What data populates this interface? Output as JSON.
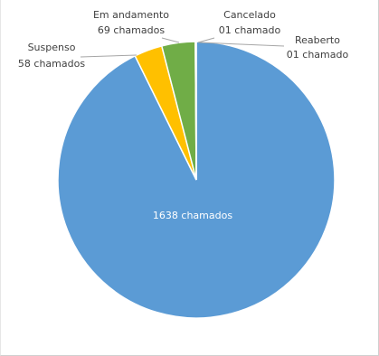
{
  "chart_data": {
    "type": "pie",
    "slices": [
      {
        "label": "",
        "value": 1638,
        "value_label": "1638 chamados",
        "color": "#5B9BD5"
      },
      {
        "label": "Suspenso",
        "value": 58,
        "value_label": "58 chamados",
        "color": "#FFC000"
      },
      {
        "label": "Em andamento",
        "value": 69,
        "value_label": "69 chamados",
        "color": "#70AD47"
      },
      {
        "label": "Cancelado",
        "value": 1,
        "value_label": "01 chamado",
        "color": "#A5A5A5"
      },
      {
        "label": "Reaberto",
        "value": 1,
        "value_label": "01 chamado",
        "color": "#4472C4"
      }
    ]
  }
}
